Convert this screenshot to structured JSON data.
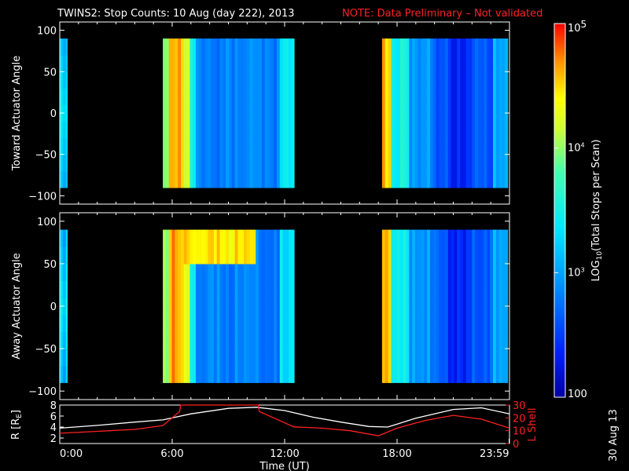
{
  "title": {
    "main": "TWINS2: Stop Counts: 10 Aug (day 222), 2013",
    "note": "NOTE: Data Preliminary – Not validated"
  },
  "chart_data": [
    {
      "type": "heatmap",
      "ylabel": "Toward Actuator Angle",
      "ylim": [
        -110,
        110
      ],
      "yticks": [
        "100",
        "50",
        "0",
        "−50",
        "−100"
      ],
      "ytick_values": [
        100,
        50,
        0,
        -50,
        -100
      ],
      "xlim_hours": [
        0,
        24
      ],
      "data_intervals_hours": [
        [
          0.0,
          0.4
        ],
        [
          5.5,
          12.5
        ],
        [
          17.2,
          23.9
        ]
      ],
      "angle_range": [
        -90,
        90
      ]
    },
    {
      "type": "heatmap",
      "ylabel": "Away Actuator Angle",
      "ylim": [
        -110,
        110
      ],
      "yticks": [
        "100",
        "50",
        "0",
        "−50",
        "−100"
      ],
      "ytick_values": [
        100,
        50,
        0,
        -50,
        -100
      ],
      "xlim_hours": [
        0,
        24
      ],
      "data_intervals_hours": [
        [
          0.0,
          0.4
        ],
        [
          5.5,
          12.5
        ],
        [
          17.2,
          23.9
        ]
      ],
      "angle_range": [
        -90,
        90
      ]
    },
    {
      "type": "line",
      "ylabel_left": "R [R",
      "ylabel_left_sub": "E",
      "ylabel_left_end": "]",
      "ylabel_right": "L Shell",
      "ylim_left": [
        1,
        8
      ],
      "ylim_right": [
        0,
        30
      ],
      "yticks_left": [
        "8",
        "6",
        "4",
        "2"
      ],
      "ytick_left_values": [
        8,
        6,
        4,
        2
      ],
      "yticks_right": [
        "30",
        "20",
        "10",
        "0"
      ],
      "ytick_right_values": [
        30,
        20,
        10,
        0
      ],
      "xlabel": "Time (UT)",
      "xticks": [
        "0:00",
        "6:00",
        "12:00",
        "18:00",
        "23:59"
      ],
      "xtick_values": [
        0,
        6,
        12,
        18,
        23.98
      ],
      "series": [
        {
          "color": "#ffffff",
          "x": [
            0,
            2,
            4,
            5.5,
            7,
            9,
            10.5,
            12,
            13.5,
            15,
            16.5,
            17.5,
            19,
            21,
            22.5,
            24
          ],
          "y": [
            3.8,
            4.3,
            4.9,
            5.3,
            6.4,
            7.4,
            7.6,
            7.0,
            5.8,
            4.9,
            4.1,
            4.0,
            5.6,
            7.2,
            7.5,
            6.4
          ]
        },
        {
          "color": "#ff2020",
          "axis": "right",
          "x": [
            0,
            2,
            4,
            5.5,
            6.4,
            6.45,
            10.6,
            10.65,
            12.5,
            14,
            15.5,
            17,
            18,
            19.5,
            21,
            22.5,
            24
          ],
          "y": [
            8,
            9.5,
            11,
            14,
            25,
            32,
            32,
            25,
            13,
            12,
            10,
            6,
            12,
            18,
            22,
            19,
            12
          ]
        }
      ]
    }
  ],
  "colorbar": {
    "label_prefix": "LOG",
    "label_sub": "10",
    "label_suffix": "(Total Stops per Scan)",
    "ticks": [
      {
        "base": "10",
        "exp": "5",
        "value": 5
      },
      {
        "base": "10",
        "exp": "4",
        "value": 4
      },
      {
        "base": "10",
        "exp": "3",
        "value": 3
      },
      {
        "base": "100",
        "exp": "",
        "value": 2
      }
    ],
    "range_log": [
      2,
      5
    ]
  },
  "datestamp": "30 Aug 13"
}
